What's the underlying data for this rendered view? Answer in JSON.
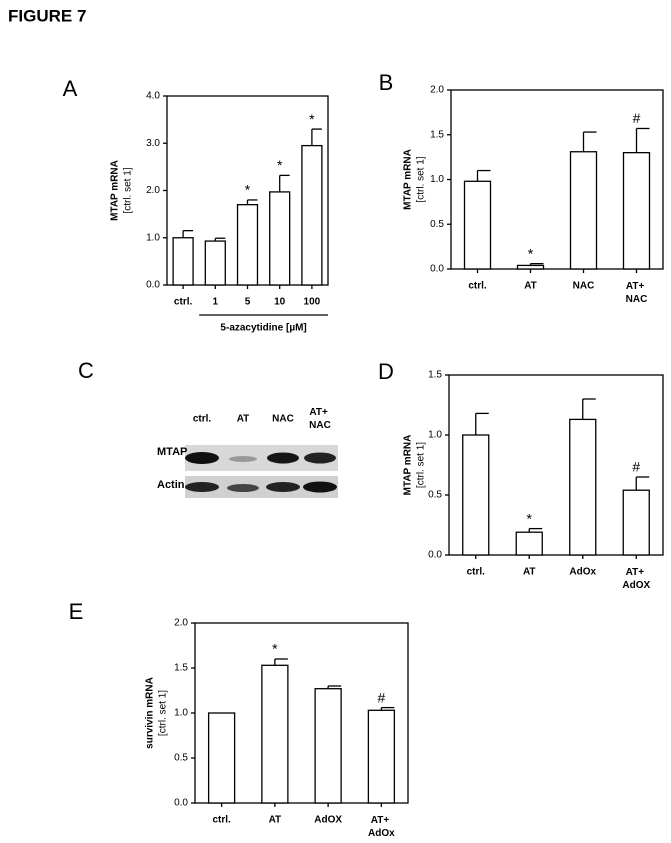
{
  "title": "FIGURE 7",
  "chart_data": [
    {
      "type": "bar",
      "panel": "A",
      "y_label": [
        "MTAP mRNA",
        "[ctrl. set 1]"
      ],
      "categories": [
        "ctrl.",
        "1",
        "5",
        "10",
        "100"
      ],
      "values": [
        1.0,
        0.93,
        1.7,
        1.97,
        2.95
      ],
      "errors": [
        0.15,
        0.06,
        0.1,
        0.35,
        0.35
      ],
      "annotations": [
        null,
        null,
        "*",
        "*",
        "*"
      ],
      "color": "#ffffff",
      "ylim": [
        0,
        4
      ],
      "yticks": [
        {
          "value": 0,
          "label": "0.0"
        },
        {
          "value": 1,
          "label": "1.0"
        },
        {
          "value": 2,
          "label": "2.0"
        },
        {
          "value": 3,
          "label": "3.0"
        },
        {
          "value": 4,
          "label": "4.0"
        }
      ],
      "group": {
        "label": "5-azacytidine [µM]",
        "from": 1,
        "to": 4
      }
    },
    {
      "type": "bar",
      "panel": "B",
      "y_label": [
        "MTAP mRNA",
        "[ctrl. set 1]"
      ],
      "categories": [
        "ctrl.",
        "AT",
        "NAC",
        "AT+ NAC"
      ],
      "values": [
        0.98,
        0.04,
        1.31,
        1.3
      ],
      "errors": [
        0.12,
        0.02,
        0.22,
        0.27
      ],
      "annotations": [
        null,
        "*",
        null,
        "#"
      ],
      "color": "#ffffff",
      "ylim": [
        0,
        2
      ],
      "yticks": [
        {
          "value": 0,
          "label": "0.0"
        },
        0.5,
        {
          "value": 1,
          "label": "1.0"
        },
        1.5,
        {
          "value": 2,
          "label": "2.0"
        }
      ]
    },
    {
      "type": "bar",
      "panel": "D",
      "y_label": [
        "MTAP mRNA",
        "[ctrl. set 1]"
      ],
      "categories": [
        "ctrl.",
        "AT",
        "AdOx",
        "AT+ AdOX"
      ],
      "values": [
        1.0,
        0.19,
        1.13,
        0.54
      ],
      "errors": [
        0.18,
        0.03,
        0.17,
        0.11
      ],
      "annotations": [
        null,
        "*",
        null,
        "#"
      ],
      "color": "#ffffff",
      "ylim": [
        0,
        1.5
      ],
      "yticks": [
        {
          "value": 0,
          "label": "0.0"
        },
        0.5,
        {
          "value": 1,
          "label": "1.0"
        },
        1.5
      ]
    },
    {
      "type": "bar",
      "panel": "E",
      "y_label": [
        "survivin mRNA",
        "[ctrl. set 1]"
      ],
      "categories": [
        "ctrl.",
        "AT",
        "AdOX",
        "AT+ AdOx"
      ],
      "values": [
        1.0,
        1.53,
        1.27,
        1.03
      ],
      "errors": [
        0,
        0.07,
        0.03,
        0.03
      ],
      "annotations": [
        null,
        "*",
        null,
        "#"
      ],
      "color": "#ffffff",
      "ylim": [
        0,
        2
      ],
      "yticks": [
        {
          "value": 0,
          "label": "0.0"
        },
        0.5,
        {
          "value": 1,
          "label": "1.0"
        },
        1.5,
        {
          "value": 2,
          "label": "2.0"
        }
      ]
    }
  ],
  "blot": {
    "panel": "C",
    "lanes": [
      "ctrl.",
      "AT",
      "NAC",
      "AT+ NAC"
    ],
    "rows": [
      "MTAP",
      "Actin"
    ]
  }
}
